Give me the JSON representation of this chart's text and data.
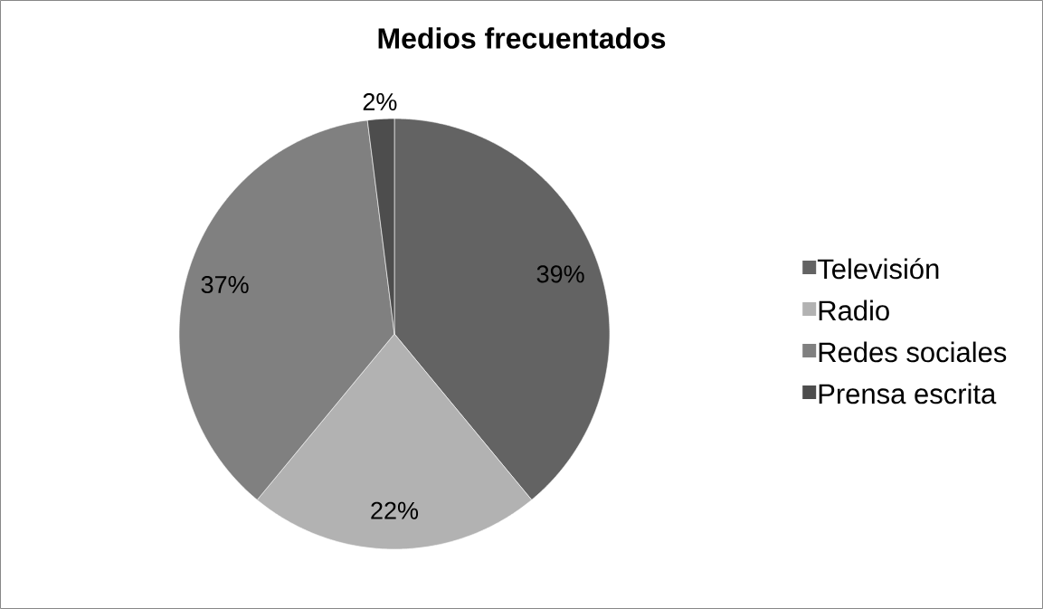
{
  "chart_data": {
    "type": "pie",
    "title": "Medios frecuentados",
    "categories": [
      "Televisión",
      "Radio",
      "Redes sociales",
      "Prensa escrita"
    ],
    "values": [
      39,
      22,
      37,
      2
    ],
    "colors": [
      "#636363",
      "#b2b2b2",
      "#808080",
      "#4d4d4d"
    ],
    "value_labels": [
      "39%",
      "22%",
      "37%",
      "2%"
    ],
    "legend": "right"
  }
}
